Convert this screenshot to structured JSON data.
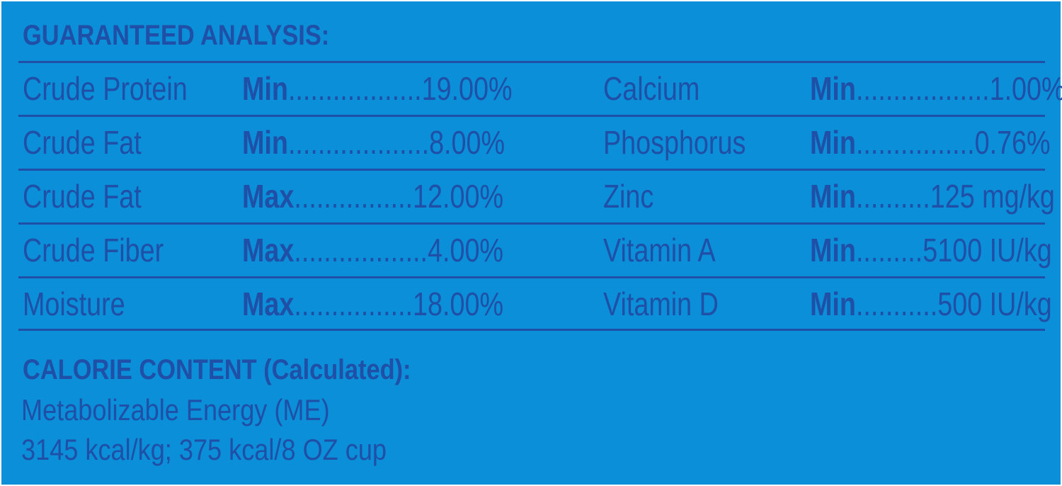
{
  "heading": "GUARANTEED ANALYSIS:",
  "rows": [
    {
      "left": {
        "name": "Crude Protein",
        "kind": "Min",
        "dots": "..................",
        "amount": "19.00%"
      },
      "right": {
        "name": "Calcium",
        "kind": "Min",
        "dots": "..................",
        "amount": "1.00%"
      }
    },
    {
      "left": {
        "name": "Crude Fat",
        "kind": "Min",
        "dots": "...................",
        "amount": "8.00%"
      },
      "right": {
        "name": "Phosphorus",
        "kind": "Min",
        "dots": "................",
        "amount": "0.76%"
      }
    },
    {
      "left": {
        "name": "Crude Fat",
        "kind": "Max",
        "dots": "................",
        "amount": "12.00%"
      },
      "right": {
        "name": "Zinc",
        "kind": "Min",
        "dots": "..........",
        "amount": "125 mg/kg"
      }
    },
    {
      "left": {
        "name": "Crude Fiber",
        "kind": "Max",
        "dots": "..................",
        "amount": "4.00%"
      },
      "right": {
        "name": "Vitamin A",
        "kind": "Min",
        "dots": ".........",
        "amount": "5100 IU/kg"
      }
    },
    {
      "left": {
        "name": "Moisture",
        "kind": "Max",
        "dots": "................",
        "amount": "18.00%"
      },
      "right": {
        "name": "Vitamin D",
        "kind": "Min",
        "dots": "...........",
        "amount": "500 IU/kg"
      }
    }
  ],
  "calorie": {
    "heading": "CALORIE CONTENT (Calculated):",
    "line1": "Metabolizable Energy (ME)",
    "line2": "3145 kcal/kg; 375 kcal/8 OZ cup"
  },
  "colors": {
    "background": "#0b8fd8",
    "text": "#1f4fa6"
  }
}
